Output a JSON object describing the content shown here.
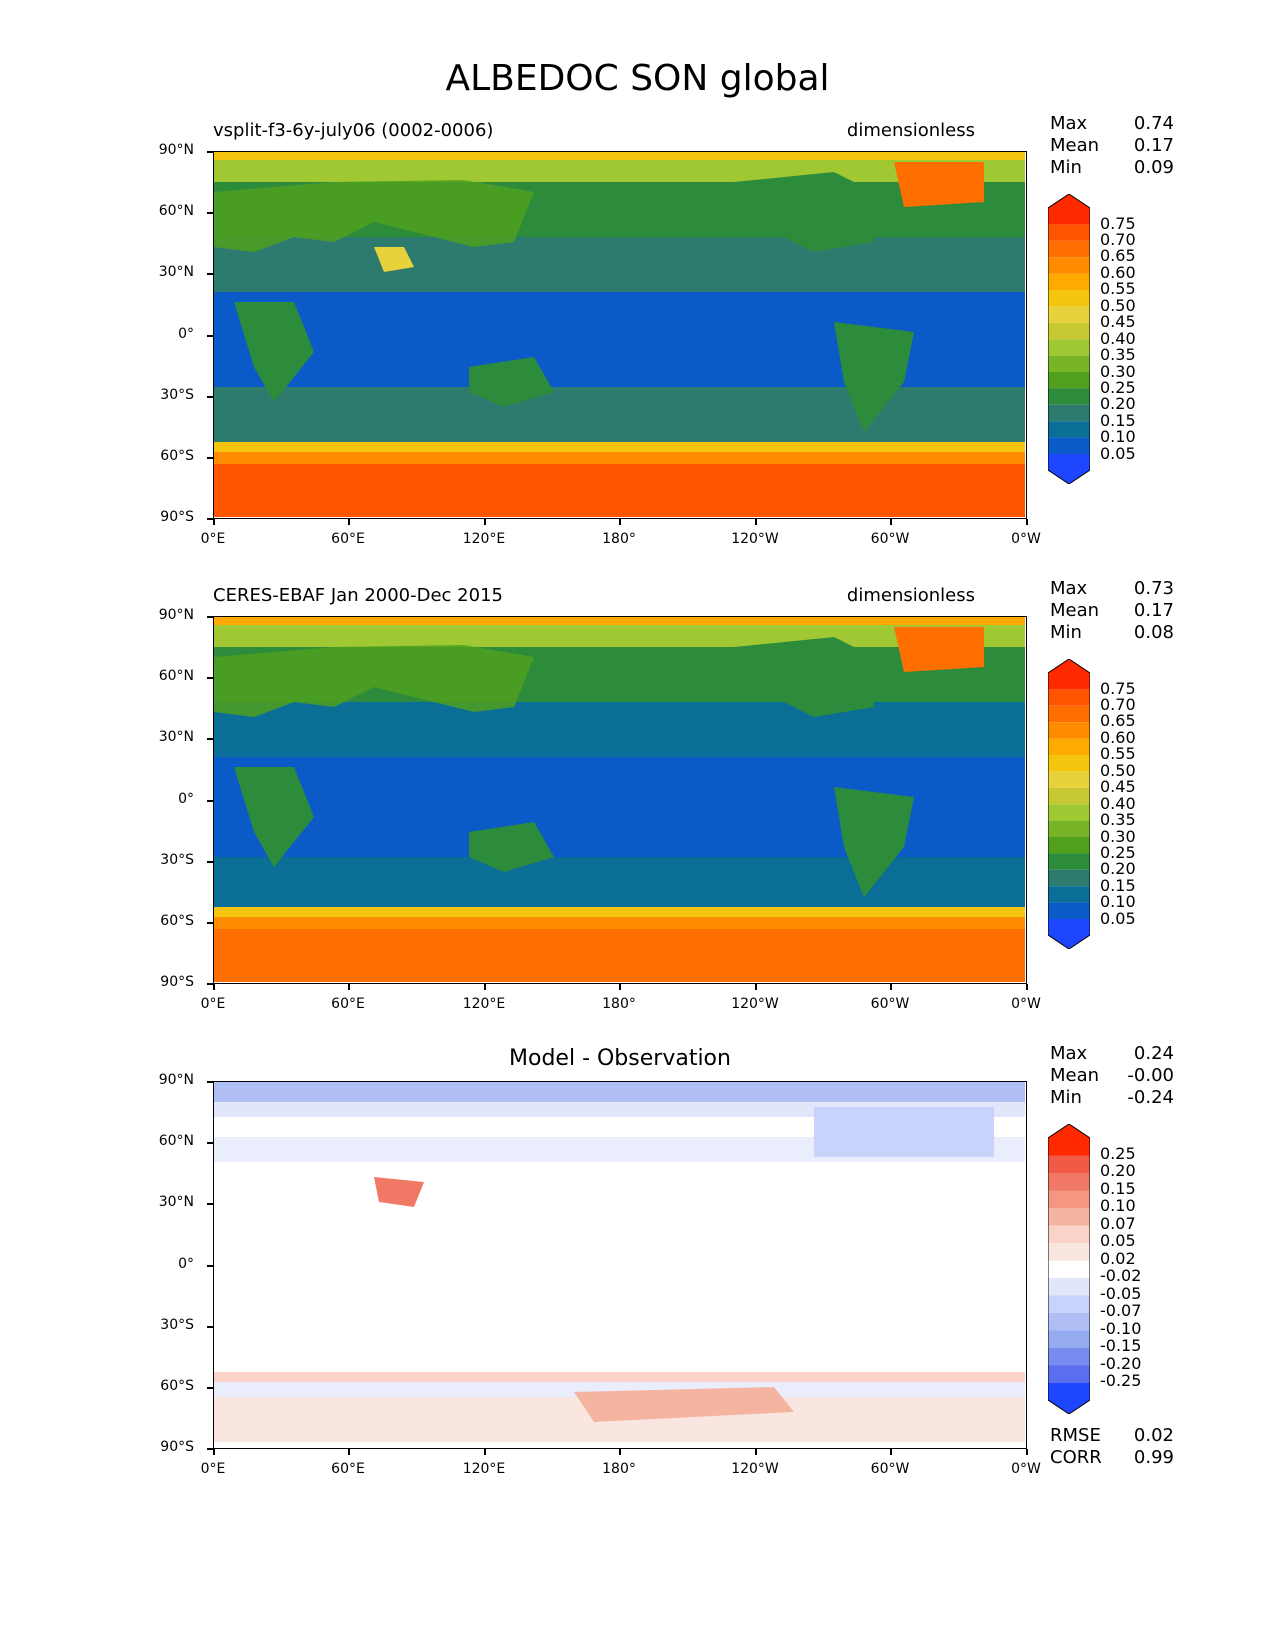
{
  "title": "ALBEDOC SON global",
  "x_ticks": [
    "0°E",
    "60°E",
    "120°E",
    "180°",
    "120°W",
    "60°W",
    "0°W"
  ],
  "y_ticks": [
    "90°N",
    "60°N",
    "30°N",
    "0°",
    "30°S",
    "60°S",
    "90°S"
  ],
  "panels": [
    {
      "left_title": "vsplit-f3-6y-july06 (0002-0006)",
      "right_title": "dimensionless",
      "stats": [
        [
          "Max",
          "0.74"
        ],
        [
          "Mean",
          "0.17"
        ],
        [
          "Min",
          "0.09"
        ]
      ],
      "colorbar_labels": [
        "0.75",
        "0.70",
        "0.65",
        "0.60",
        "0.55",
        "0.50",
        "0.45",
        "0.40",
        "0.35",
        "0.30",
        "0.25",
        "0.20",
        "0.15",
        "0.10",
        "0.05"
      ]
    },
    {
      "left_title": "CERES-EBAF Jan 2000-Dec 2015",
      "right_title": "dimensionless",
      "stats": [
        [
          "Max",
          "0.73"
        ],
        [
          "Mean",
          "0.17"
        ],
        [
          "Min",
          "0.08"
        ]
      ],
      "colorbar_labels": [
        "0.75",
        "0.70",
        "0.65",
        "0.60",
        "0.55",
        "0.50",
        "0.45",
        "0.40",
        "0.35",
        "0.30",
        "0.25",
        "0.20",
        "0.15",
        "0.10",
        "0.05"
      ]
    },
    {
      "center_title": "Model - Observation",
      "stats": [
        [
          "Max",
          "0.24"
        ],
        [
          "Mean",
          "-0.00"
        ],
        [
          "Min",
          "-0.24"
        ]
      ],
      "colorbar_labels": [
        "0.25",
        "0.20",
        "0.15",
        "0.10",
        "0.07",
        "0.05",
        "0.02",
        "-0.02",
        "-0.05",
        "-0.07",
        "-0.10",
        "-0.15",
        "-0.20",
        "-0.25"
      ],
      "footer_stats": [
        [
          "RMSE",
          "0.02"
        ],
        [
          "CORR",
          "0.99"
        ]
      ]
    }
  ],
  "colors": {
    "abs_scale": [
      "#ff2a00",
      "#ff5500",
      "#ff6e00",
      "#ff8c00",
      "#ffaa00",
      "#f5c40f",
      "#e8d23c",
      "#c8c832",
      "#a0c832",
      "#78b428",
      "#50a01e",
      "#2d8c3c",
      "#2d7a6e",
      "#0a6e96",
      "#0a5ac8",
      "#1e46ff"
    ],
    "diff_scale": [
      "#ff2a00",
      "#f05a46",
      "#f07864",
      "#f59682",
      "#f5b4a0",
      "#fad2c8",
      "#fae6e1",
      "#ffffff",
      "#e1e6fa",
      "#c8d2fa",
      "#afbef5",
      "#96aaf0",
      "#788cf0",
      "#5a6ef0",
      "#3c50f5",
      "#1e46ff"
    ]
  }
}
